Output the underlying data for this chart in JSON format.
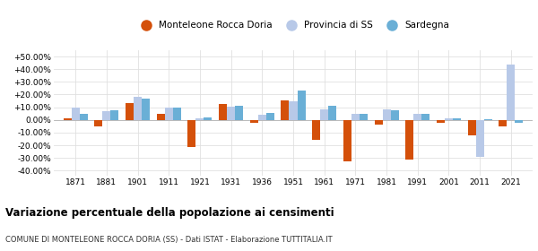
{
  "years": [
    1871,
    1881,
    1901,
    1911,
    1921,
    1931,
    1936,
    1951,
    1961,
    1971,
    1981,
    1991,
    2001,
    2011,
    2021
  ],
  "monteleone": [
    1.5,
    -5.0,
    13.5,
    5.0,
    -21.5,
    12.5,
    -2.0,
    15.5,
    -15.5,
    -33.0,
    -4.0,
    -31.0,
    -2.5,
    -12.5,
    -5.0
  ],
  "provincia": [
    10.0,
    7.0,
    18.0,
    9.5,
    1.5,
    10.5,
    4.0,
    15.0,
    8.5,
    4.5,
    8.5,
    4.5,
    1.5,
    -29.0,
    44.0
  ],
  "sardegna": [
    4.5,
    7.5,
    16.5,
    9.5,
    2.0,
    11.0,
    5.5,
    23.0,
    11.0,
    4.5,
    7.5,
    4.5,
    1.5,
    0.5,
    -2.5
  ],
  "monteleone_color": "#d4500a",
  "provincia_color": "#b8c9e8",
  "sardegna_color": "#6aafd6",
  "title": "Variazione percentuale della popolazione ai censimenti",
  "subtitle": "COMUNE DI MONTELEONE ROCCA DORIA (SS) - Dati ISTAT - Elaborazione TUTTITALIA.IT",
  "legend_labels": [
    "Monteleone Rocca Doria",
    "Provincia di SS",
    "Sardegna"
  ],
  "ylim": [
    -44,
    55
  ],
  "yticks": [
    -40,
    -30,
    -20,
    -10,
    0,
    10,
    20,
    30,
    40,
    50
  ],
  "background_color": "#ffffff",
  "grid_color": "#e0e0e0"
}
